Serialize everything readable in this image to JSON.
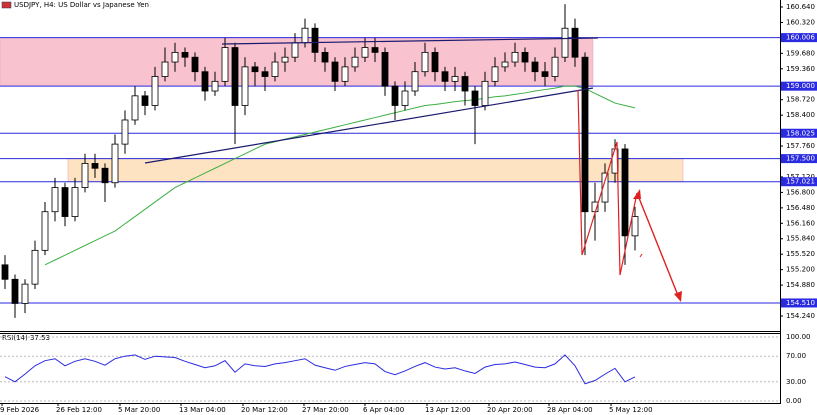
{
  "chart_data": {
    "type": "candlestick",
    "title": "USDJPY, H4:  US Dollar vs Japanese Yen",
    "xtick_labels": [
      "9 Feb 2026",
      "26 Feb 12:00",
      "5 Mar 20:00",
      "13 Mar 04:00",
      "20 Mar 12:00",
      "27 Mar 20:00",
      "6 Apr 04:00",
      "13 Apr 12:00",
      "20 Apr 20:00",
      "28 Apr 04:00",
      "5 May 12:00"
    ],
    "candle_colors": {
      "up": "#ffffff",
      "down": "#000000"
    },
    "candles": [
      [
        155.3,
        155.5,
        154.8,
        155.0
      ],
      [
        155.0,
        155.1,
        154.2,
        154.5
      ],
      [
        154.5,
        155.0,
        154.3,
        154.9
      ],
      [
        154.9,
        155.8,
        154.8,
        155.6
      ],
      [
        155.6,
        156.6,
        155.5,
        156.4
      ],
      [
        156.4,
        157.1,
        156.2,
        156.9
      ],
      [
        156.9,
        157.0,
        156.1,
        156.3
      ],
      [
        156.3,
        157.1,
        156.2,
        156.9
      ],
      [
        156.9,
        157.6,
        156.8,
        157.4
      ],
      [
        157.4,
        157.6,
        157.1,
        157.3
      ],
      [
        157.3,
        157.4,
        156.6,
        157.0
      ],
      [
        157.0,
        158.0,
        156.9,
        157.8
      ],
      [
        157.8,
        158.5,
        157.6,
        158.3
      ],
      [
        158.3,
        159.0,
        158.2,
        158.8
      ],
      [
        158.8,
        158.9,
        158.4,
        158.6
      ],
      [
        158.6,
        159.4,
        158.5,
        159.2
      ],
      [
        159.2,
        159.8,
        159.1,
        159.5
      ],
      [
        159.5,
        159.9,
        159.3,
        159.7
      ],
      [
        159.7,
        159.8,
        159.4,
        159.6
      ],
      [
        159.6,
        159.7,
        159.1,
        159.3
      ],
      [
        159.3,
        159.4,
        158.7,
        158.9
      ],
      [
        158.9,
        159.3,
        158.8,
        159.1
      ],
      [
        159.1,
        160.0,
        159.0,
        159.8
      ],
      [
        159.8,
        159.9,
        157.8,
        158.6
      ],
      [
        158.6,
        159.6,
        158.4,
        159.4
      ],
      [
        159.4,
        159.5,
        159.0,
        159.3
      ],
      [
        159.3,
        159.4,
        158.9,
        159.2
      ],
      [
        159.2,
        159.7,
        159.1,
        159.5
      ],
      [
        159.5,
        159.8,
        159.3,
        159.6
      ],
      [
        159.6,
        160.1,
        159.5,
        159.9
      ],
      [
        159.9,
        160.4,
        159.8,
        160.2
      ],
      [
        160.2,
        160.3,
        159.5,
        159.7
      ],
      [
        159.7,
        159.8,
        159.3,
        159.5
      ],
      [
        159.5,
        159.6,
        158.9,
        159.1
      ],
      [
        159.1,
        159.6,
        159.0,
        159.4
      ],
      [
        159.4,
        159.8,
        159.3,
        159.6
      ],
      [
        159.6,
        160.0,
        159.5,
        159.8
      ],
      [
        159.8,
        160.0,
        159.5,
        159.7
      ],
      [
        159.7,
        159.8,
        158.8,
        159.0
      ],
      [
        159.0,
        159.1,
        158.3,
        158.6
      ],
      [
        158.6,
        159.1,
        158.5,
        158.9
      ],
      [
        158.9,
        159.5,
        158.8,
        159.3
      ],
      [
        159.3,
        159.9,
        159.2,
        159.7
      ],
      [
        159.7,
        159.8,
        159.1,
        159.3
      ],
      [
        159.3,
        159.4,
        158.9,
        159.1
      ],
      [
        159.1,
        159.4,
        158.9,
        159.2
      ],
      [
        159.2,
        159.3,
        158.6,
        158.9
      ],
      [
        158.9,
        159.0,
        157.8,
        158.6
      ],
      [
        158.6,
        159.3,
        158.5,
        159.1
      ],
      [
        159.1,
        159.6,
        159.0,
        159.4
      ],
      [
        159.4,
        159.7,
        159.3,
        159.5
      ],
      [
        159.5,
        159.9,
        159.4,
        159.7
      ],
      [
        159.7,
        159.8,
        159.3,
        159.5
      ],
      [
        159.5,
        159.6,
        159.1,
        159.3
      ],
      [
        159.3,
        159.5,
        159.0,
        159.2
      ],
      [
        159.2,
        159.8,
        159.1,
        159.6
      ],
      [
        159.6,
        160.7,
        159.5,
        160.2
      ],
      [
        160.2,
        160.4,
        159.4,
        159.6
      ],
      [
        159.6,
        159.7,
        155.5,
        156.4
      ],
      [
        156.4,
        157.0,
        155.8,
        156.6
      ],
      [
        156.6,
        157.4,
        156.4,
        157.2
      ],
      [
        157.2,
        157.9,
        157.0,
        157.7
      ],
      [
        157.7,
        157.8,
        155.3,
        155.9
      ],
      [
        155.9,
        156.5,
        155.6,
        156.3
      ]
    ],
    "ma": {
      "color": "#3cb043",
      "values": [
        null,
        null,
        null,
        null,
        155.3,
        155.4,
        155.5,
        155.6,
        155.7,
        155.8,
        155.9,
        156.0,
        156.15,
        156.3,
        156.45,
        156.6,
        156.75,
        156.9,
        157.0,
        157.1,
        157.2,
        157.3,
        157.4,
        157.5,
        157.6,
        157.7,
        157.8,
        157.85,
        157.9,
        157.95,
        158.0,
        158.05,
        158.1,
        158.15,
        158.2,
        158.25,
        158.3,
        158.35,
        158.4,
        158.45,
        158.5,
        158.55,
        158.6,
        158.62,
        158.65,
        158.68,
        158.7,
        158.72,
        158.75,
        158.78,
        158.8,
        158.83,
        158.86,
        158.9,
        158.93,
        158.96,
        159.0,
        159.0,
        158.95,
        158.85,
        158.75,
        158.65,
        158.6,
        158.55
      ]
    },
    "ylim": [
      153.95,
      160.785
    ],
    "yticks": [
      {
        "value": 160.64,
        "label": "160.640"
      },
      {
        "value": 160.32,
        "label": "160.320"
      },
      {
        "value": 159.68,
        "label": "159.680"
      },
      {
        "value": 159.36,
        "label": "159.360"
      },
      {
        "value": 158.72,
        "label": "158.720"
      },
      {
        "value": 158.4,
        "label": "158.400"
      },
      {
        "value": 157.76,
        "label": "157.760"
      },
      {
        "value": 157.12,
        "label": "157.120"
      },
      {
        "value": 156.8,
        "label": "156.800"
      },
      {
        "value": 156.48,
        "label": "156.480"
      },
      {
        "value": 156.16,
        "label": "156.160"
      },
      {
        "value": 155.84,
        "label": "155.840"
      },
      {
        "value": 155.52,
        "label": "155.520"
      },
      {
        "value": 155.2,
        "label": "155.200"
      },
      {
        "value": 154.88,
        "label": "154.880"
      },
      {
        "value": 154.24,
        "label": "154.240"
      }
    ],
    "level_color": "#2a2ae0",
    "levels": [
      160.006,
      {
        "value": 159,
        "label": "159.000"
      },
      158.025,
      {
        "value": 157.5,
        "label": "157.500"
      },
      157.021,
      {
        "value": 154.51,
        "label": "154.510"
      }
    ],
    "zones": [
      {
        "from": 159,
        "to": 160.006,
        "color": "#f9c2cf"
      },
      {
        "from": 157.021,
        "to": 157.5,
        "color": "#fde3c2"
      }
    ],
    "rsi": {
      "label": "RSI(14) 37.53",
      "color": "#2a2ae0",
      "ylim": [
        0,
        100
      ],
      "yticks": [
        {
          "value": 100,
          "label": "100.00"
        },
        {
          "value": 70,
          "label": "70.00"
        },
        {
          "value": 30,
          "label": "30.00"
        },
        {
          "value": 0,
          "label": "0.00"
        }
      ],
      "values": [
        38,
        30,
        42,
        55,
        63,
        66,
        55,
        62,
        66,
        62,
        56,
        66,
        70,
        72,
        65,
        70,
        69,
        68,
        62,
        57,
        52,
        55,
        63,
        45,
        58,
        55,
        54,
        58,
        60,
        63,
        66,
        56,
        52,
        48,
        54,
        57,
        60,
        58,
        46,
        41,
        47,
        54,
        60,
        53,
        50,
        52,
        47,
        43,
        53,
        57,
        58,
        61,
        57,
        53,
        52,
        58,
        72,
        55,
        27,
        32,
        42,
        51,
        30,
        37.53
      ]
    }
  }
}
